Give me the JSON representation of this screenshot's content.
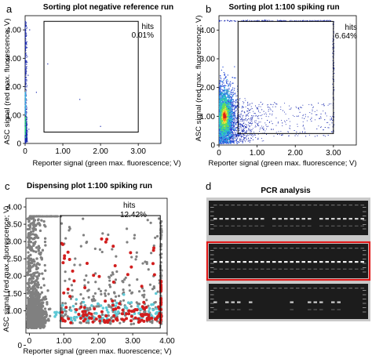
{
  "chart_data": [
    {
      "panel": "a",
      "type": "scatter",
      "title": "Sorting plot negative reference run",
      "xlabel": "Reporter signal (green max. fluorescence; V)",
      "ylabel": "ASC signal (red max. fluorescence; V)",
      "x_ticks": [
        "0",
        "1.00",
        "2.00",
        "3.00"
      ],
      "y_ticks": [
        "0",
        "1.00",
        "2.00",
        "3.00",
        "4.00"
      ],
      "xlim": [
        0,
        3.6
      ],
      "ylim": [
        0,
        4.5
      ],
      "gate": {
        "x": [
          0.5,
          3.0
        ],
        "y": [
          0.4,
          4.3
        ]
      },
      "hits_label": "hits",
      "hits_value": "0.01%",
      "points": [
        [
          0.05,
          0.2
        ],
        [
          0.1,
          0.5
        ],
        [
          0.04,
          1.2
        ],
        [
          0.08,
          2.4
        ],
        [
          0.02,
          3.5
        ],
        [
          0.12,
          4.0
        ],
        [
          0.3,
          1.8
        ],
        [
          0.6,
          2.8
        ],
        [
          2.0,
          0.6
        ],
        [
          1.45,
          1.55
        ]
      ]
    },
    {
      "panel": "b",
      "type": "scatter",
      "title": "Sorting plot 1:100 spiking run",
      "xlabel": "Reporter signal (green max. fluorescence; V)",
      "ylabel": "ASC signal (red max. fluorescence; V)",
      "x_ticks": [
        "0",
        "1.00",
        "2.00",
        "3.00"
      ],
      "y_ticks": [
        "0",
        "1.00",
        "2.00",
        "3.00",
        "4.00"
      ],
      "xlim": [
        0,
        3.6
      ],
      "ylim": [
        0,
        4.5
      ],
      "gate": {
        "x": [
          0.5,
          3.0
        ],
        "y": [
          0.4,
          4.3
        ]
      },
      "hits_label": "hits",
      "hits_value": "6.64%",
      "dense_core": {
        "x": 0.15,
        "y": 1.0
      }
    },
    {
      "panel": "c",
      "type": "scatter",
      "title": "Dispensing plot 1:100 spiking run",
      "xlabel": "Reporter signal (green max. fluorescence; V)",
      "ylabel": "ASC signal (red max. fluorescence; V)",
      "x_ticks": [
        "0",
        "1.00",
        "2.00",
        "3.00",
        "4.00"
      ],
      "y_ticks": [
        "0",
        "1.00",
        "1.50",
        "2.00",
        "2.50",
        "3.00",
        "3.50",
        "4.00"
      ],
      "xlim": [
        -0.1,
        4.0
      ],
      "ylim": [
        0.35,
        4.25
      ],
      "gate": {
        "x": [
          0.9,
          3.8
        ],
        "y": [
          0.5,
          3.75
        ]
      },
      "hits_label": "hits",
      "hits_value": "12.42%",
      "series_colors": {
        "all": "#808080",
        "cyan": "#5fc9d6",
        "red": "#d21e1e"
      }
    },
    {
      "panel": "d",
      "type": "other",
      "title": "PCR analysis",
      "gel_rows": 3,
      "highlighted_row": 2,
      "highlight_color": "#e01b1b"
    }
  ]
}
